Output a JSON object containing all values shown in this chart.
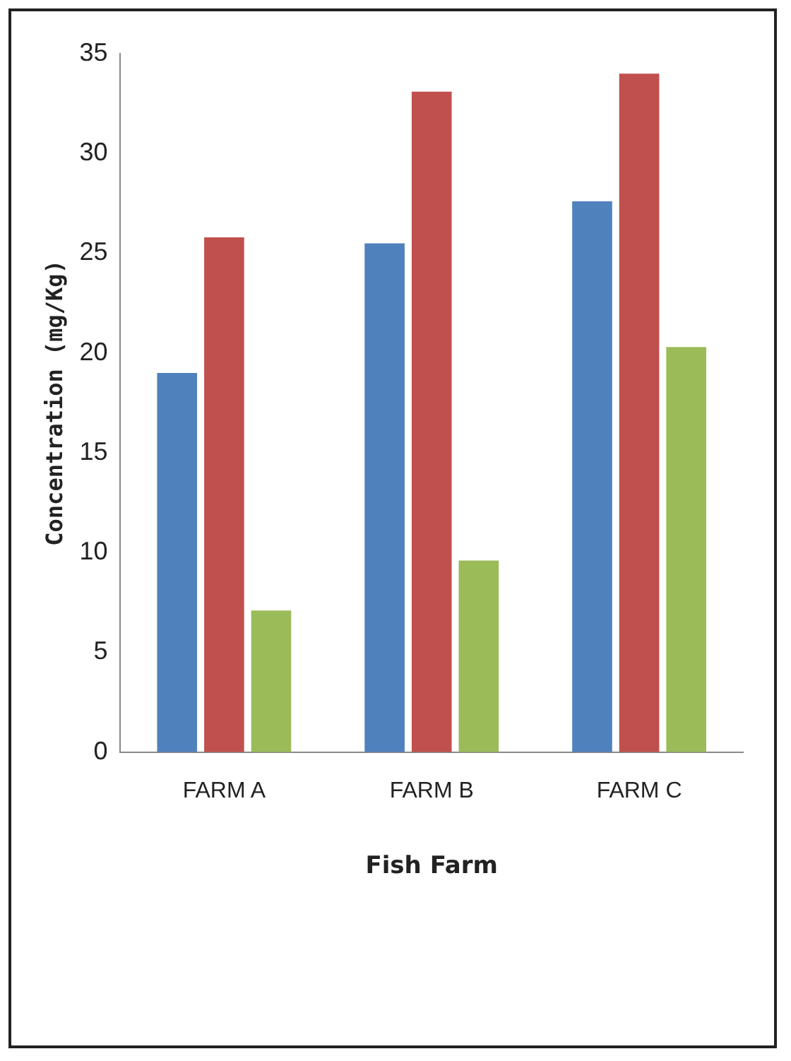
{
  "chart_data": {
    "type": "bar",
    "xlabel": "Fish Farm",
    "ylabel": "Concentration (mg/Kg)",
    "categories": [
      "FARM A",
      "FARM B",
      "FARM C"
    ],
    "series": [
      {
        "color": "#4f81bd",
        "values": [
          19.0,
          25.5,
          27.6
        ]
      },
      {
        "color": "#c0504d",
        "values": [
          25.8,
          33.1,
          34.0
        ]
      },
      {
        "color": "#9bbb59",
        "values": [
          7.1,
          9.6,
          20.3
        ]
      }
    ],
    "ylim": [
      0,
      35
    ],
    "yticks": [
      0,
      5,
      10,
      15,
      20,
      25,
      30,
      35
    ],
    "grid": false,
    "legend": false
  }
}
